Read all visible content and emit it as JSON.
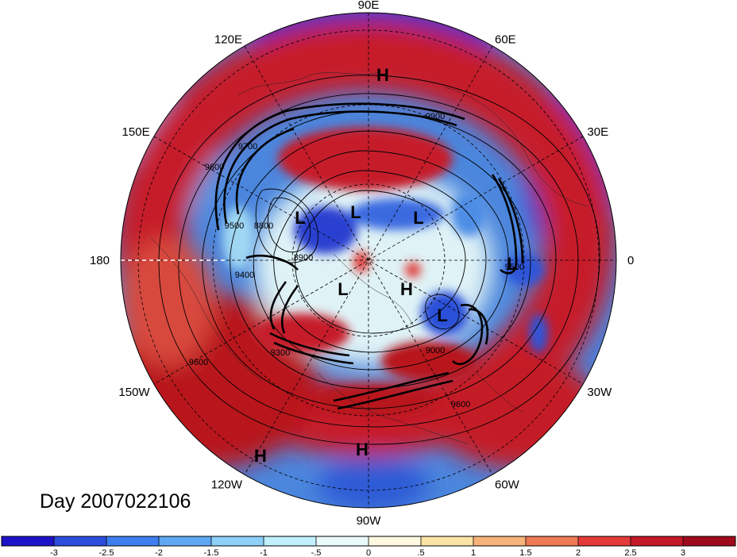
{
  "title": "Day 2007022106",
  "longitude_labels": [
    {
      "text": "90E",
      "deg": 90
    },
    {
      "text": "60E",
      "deg": 60
    },
    {
      "text": "30E",
      "deg": 30
    },
    {
      "text": "0",
      "deg": 0
    },
    {
      "text": "30W",
      "deg": -30
    },
    {
      "text": "60W",
      "deg": -60
    },
    {
      "text": "90W",
      "deg": -90
    },
    {
      "text": "120W",
      "deg": -120
    },
    {
      "text": "150W",
      "deg": -150
    },
    {
      "text": "180",
      "deg": 180
    },
    {
      "text": "150E",
      "deg": 150
    },
    {
      "text": "120E",
      "deg": 120
    }
  ],
  "pressure_centers": [
    {
      "text": "H"
    },
    {
      "text": "L"
    },
    {
      "text": "L"
    },
    {
      "text": "L"
    },
    {
      "text": "L"
    },
    {
      "text": "L"
    },
    {
      "text": "H"
    },
    {
      "text": "L"
    },
    {
      "text": "H"
    },
    {
      "text": "H"
    }
  ],
  "contour_labels": [
    "9700",
    "9600",
    "9500",
    "9400",
    "9300",
    "9000",
    "8900",
    "8800",
    "9900",
    "9600",
    "9500",
    "9600"
  ],
  "colorbar": {
    "colors": [
      "#1e12c8",
      "#2c4cdc",
      "#3f7ef0",
      "#5fa8f4",
      "#8dd0f8",
      "#bff0fc",
      "#eaf9fb",
      "#fdf8df",
      "#fbe3a6",
      "#f6b37a",
      "#ee7a56",
      "#e13a38",
      "#c31828",
      "#9e0a1c"
    ],
    "labels": [
      "-3",
      "-2.5",
      "-2",
      "-1.5",
      "-1",
      "-.5",
      "0",
      ".5",
      "1",
      "1.5",
      "2",
      "2.5",
      "3"
    ]
  }
}
